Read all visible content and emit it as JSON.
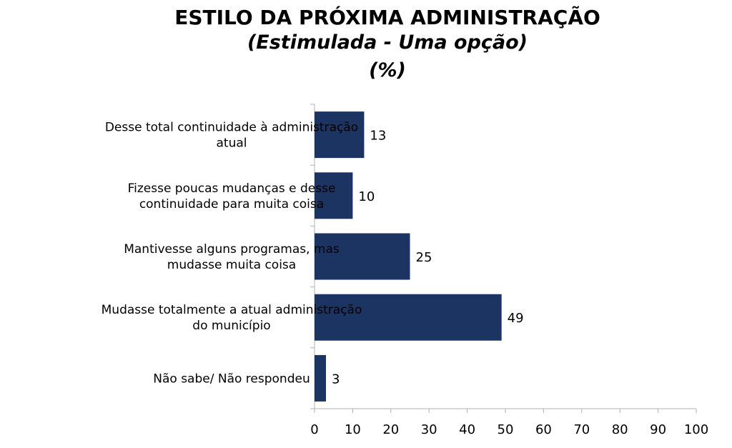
{
  "title_lines": [
    "ESTILO DA PRÓXIMA ADMINISTRAÇÃO",
    "(Estimulada - Uma opção)",
    "(%)"
  ],
  "colors": {
    "bar": "#1b3462",
    "axis": "#b0b0b0"
  },
  "chart_data": {
    "type": "bar",
    "orientation": "horizontal",
    "title": "ESTILO DA PRÓXIMA ADMINISTRAÇÃO",
    "subtitle": "(Estimulada - Uma opção) (%)",
    "categories": [
      [
        "Desse total continuidade à administração",
        "atual"
      ],
      [
        "Fizesse poucas mudanças e desse",
        "continuidade para muita coisa"
      ],
      [
        "Mantivesse alguns programas, mas",
        "mudasse muita coisa"
      ],
      [
        "Mudasse totalmente a atual administração",
        "do município"
      ],
      [
        "Não sabe/ Não respondeu"
      ]
    ],
    "values": [
      13,
      10,
      25,
      49,
      3
    ],
    "data_labels": [
      "13",
      "10",
      "25",
      "49",
      "3"
    ],
    "xlim": [
      0,
      100
    ],
    "xticks": [
      0,
      10,
      20,
      30,
      40,
      50,
      60,
      70,
      80,
      90,
      100
    ],
    "xtick_labels": [
      "0",
      "10",
      "20",
      "30",
      "40",
      "50",
      "60",
      "70",
      "80",
      "90",
      "100"
    ],
    "grid": false,
    "legend": "none"
  }
}
